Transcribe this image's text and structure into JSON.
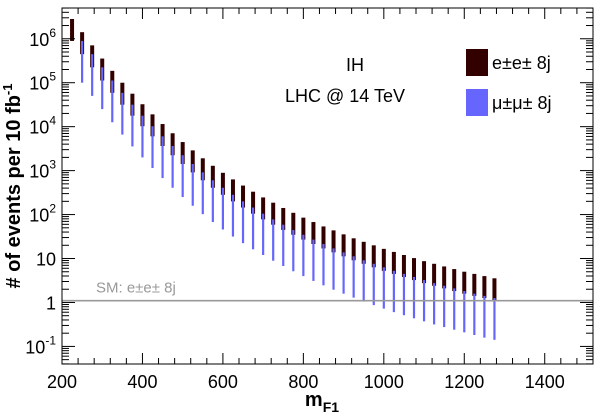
{
  "chart_data": {
    "type": "error-band-bars",
    "xlabel_main": "m",
    "xlabel_sub": "F1",
    "ylabel_main": "# of events per 10 fb",
    "ylabel_sup": "-1",
    "xlim": [
      200,
      1520
    ],
    "ylim_log10": [
      -1.4,
      6.7
    ],
    "x_ticks": [
      {
        "value": 200,
        "label": "200"
      },
      {
        "value": 400,
        "label": "400"
      },
      {
        "value": 600,
        "label": "600"
      },
      {
        "value": 800,
        "label": "800"
      },
      {
        "value": 1000,
        "label": "1000"
      },
      {
        "value": 1200,
        "label": "1200"
      },
      {
        "value": 1400,
        "label": "1400"
      }
    ],
    "y_ticks": [
      {
        "exp": -1,
        "base": "10",
        "sup": "-1"
      },
      {
        "exp": 0,
        "base": "1",
        "sup": ""
      },
      {
        "exp": 1,
        "base": "10",
        "sup": ""
      },
      {
        "exp": 2,
        "base": "10",
        "sup": "2"
      },
      {
        "exp": 3,
        "base": "10",
        "sup": "3"
      },
      {
        "exp": 4,
        "base": "10",
        "sup": "4"
      },
      {
        "exp": 5,
        "base": "10",
        "sup": "5"
      },
      {
        "exp": 6,
        "base": "10",
        "sup": "6"
      }
    ],
    "annotation_title": "IH",
    "annotation_subtitle": "LHC @ 14 TeV",
    "reference_line": {
      "label": "SM: e±e± 8j",
      "value": 1.1,
      "color": "#999999"
    },
    "series": [
      {
        "name": "e±e± 8j",
        "color": "#330000",
        "x_start": 225,
        "x_step": 25,
        "log10_min": [
          5.95,
          5.65,
          5.35,
          5.05,
          4.77,
          4.5,
          4.25,
          4.01,
          3.78,
          3.56,
          3.35,
          3.15,
          2.96,
          2.78,
          2.61,
          2.45,
          2.3,
          2.16,
          2.02,
          1.89,
          1.77,
          1.65,
          1.54,
          1.43,
          1.33,
          1.23,
          1.14,
          1.05,
          0.96,
          0.88,
          0.8,
          0.72,
          0.65,
          0.58,
          0.51,
          0.44,
          0.38,
          0.32,
          0.26,
          0.2,
          0.15,
          0.1,
          0.05
        ],
        "log10_max": [
          6.45,
          6.15,
          5.85,
          5.55,
          5.27,
          5.0,
          4.75,
          4.51,
          4.28,
          4.06,
          3.85,
          3.65,
          3.46,
          3.28,
          3.11,
          2.95,
          2.8,
          2.66,
          2.52,
          2.39,
          2.27,
          2.15,
          2.04,
          1.93,
          1.83,
          1.73,
          1.64,
          1.55,
          1.46,
          1.38,
          1.3,
          1.22,
          1.15,
          1.08,
          1.01,
          0.94,
          0.88,
          0.82,
          0.76,
          0.7,
          0.65,
          0.6,
          0.55
        ]
      },
      {
        "name": "μ±μ± 8j",
        "color": "#6666ff",
        "x_start": 250,
        "x_step": 25,
        "log10_min": [
          5.0,
          4.7,
          4.4,
          4.1,
          3.82,
          3.55,
          3.3,
          3.06,
          2.83,
          2.61,
          2.4,
          2.2,
          2.01,
          1.83,
          1.66,
          1.5,
          1.35,
          1.21,
          1.08,
          0.95,
          0.83,
          0.71,
          0.6,
          0.49,
          0.39,
          0.29,
          0.2,
          0.11,
          0.02,
          -0.06,
          -0.14,
          -0.22,
          -0.29,
          -0.36,
          -0.43,
          -0.5,
          -0.56,
          -0.62,
          -0.68,
          -0.74,
          -0.8,
          -0.85
        ],
        "log10_max": [
          5.95,
          5.65,
          5.35,
          5.05,
          4.77,
          4.5,
          4.25,
          4.01,
          3.78,
          3.56,
          3.35,
          3.15,
          2.96,
          2.78,
          2.61,
          2.45,
          2.3,
          2.16,
          2.02,
          1.89,
          1.77,
          1.65,
          1.54,
          1.43,
          1.33,
          1.23,
          1.14,
          1.05,
          0.96,
          0.88,
          0.8,
          0.72,
          0.65,
          0.58,
          0.51,
          0.44,
          0.38,
          0.32,
          0.26,
          0.2,
          0.15,
          0.1
        ]
      }
    ]
  }
}
